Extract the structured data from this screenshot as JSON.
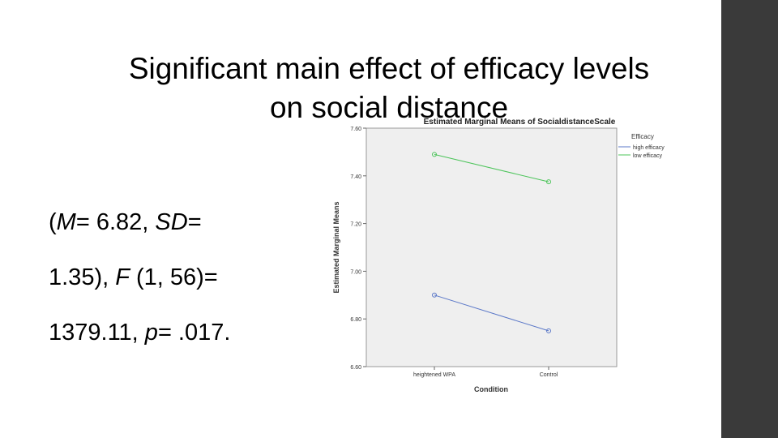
{
  "slide": {
    "title_line1": "Significant main effect of efficacy levels",
    "title_line2": "on social distance",
    "stats_line1": [
      "(",
      "M",
      "= 6.82, ",
      "SD",
      "="
    ],
    "stats_line2": [
      "1.35), ",
      "F",
      " (1, 56)="
    ],
    "stats_line3": [
      "1379.11, ",
      "p",
      "= .017."
    ]
  },
  "chart_data": {
    "type": "line",
    "title": "Estimated Marginal Means of SocialdistanceScale",
    "xlabel": "Condition",
    "ylabel": "Estimated Marginal Means",
    "categories": [
      "heightened WPA",
      "Control"
    ],
    "ylim": [
      6.6,
      7.6
    ],
    "yticks": [
      "6.60",
      "6.80",
      "7.00",
      "7.20",
      "7.40",
      "7.60"
    ],
    "legend_title": "Efficacy",
    "legend_position": "top-right",
    "grid": false,
    "series": [
      {
        "name": "high efficacy",
        "values": [
          6.9,
          6.75
        ],
        "color": "#5b78c8"
      },
      {
        "name": "low efficacy",
        "values": [
          7.49,
          7.375
        ],
        "color": "#4cc45a"
      }
    ],
    "plot_background": "#efefef"
  },
  "colors": {
    "side_bar": "#3a3a3a"
  }
}
